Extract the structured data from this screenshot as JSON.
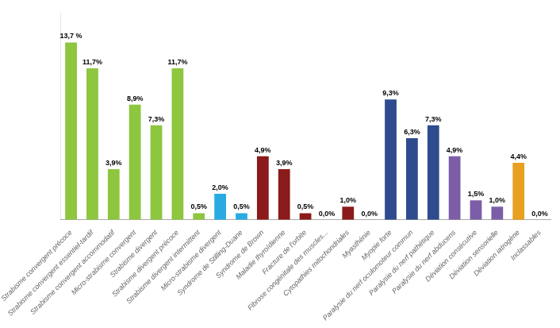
{
  "chart_data": {
    "type": "bar",
    "categories": [
      "Strabisme convergent précoce",
      "Strabisme convergent essentiel-tardif",
      "Strabisme convergent accommodatif",
      "Micro-strabisme convergent",
      "Strabisme divergent",
      "Strabisme divergent précoce",
      "Strabisme divergent intermittent",
      "Micro-strabisme divergent",
      "Syndrome de Stilling-Duane",
      "Syndrome de Brown",
      "Maladie thyroïdienne",
      "Fracture de l'orbite",
      "Fibrose congénitale des muscles...",
      "Cytopathies mitochondriales",
      "Myasthénie",
      "Myopie forte",
      "Paralysie du nerf oculomoteur commun",
      "Paralysie du nerf pathétique",
      "Paralysie du nerf abducens",
      "Déviation consécutive",
      "Déviation sensorielle",
      "Déviation iatrogène",
      "Inclassables"
    ],
    "values": [
      13.7,
      11.7,
      3.9,
      8.9,
      7.3,
      11.7,
      0.5,
      2.0,
      0.5,
      4.9,
      3.9,
      0.5,
      0.0,
      1.0,
      0.0,
      9.3,
      6.3,
      7.3,
      4.9,
      1.5,
      1.0,
      4.4,
      0.0
    ],
    "value_labels": [
      "13,7 %",
      "11,7%",
      "3,9%",
      "8,9%",
      "7,3%",
      "11,7%",
      "0,5%",
      "2,0%",
      "0,5%",
      "4,9%",
      "3,9%",
      "0,5%",
      "0,0%",
      "1,0%",
      "0,0%",
      "9,3%",
      "6,3%",
      "7,3%",
      "4,9%",
      "1,5%",
      "1,0%",
      "4,4%",
      "0,0%"
    ],
    "colors": [
      "#8dc63f",
      "#8dc63f",
      "#8dc63f",
      "#8dc63f",
      "#8dc63f",
      "#8dc63f",
      "#8dc63f",
      "#29abe2",
      "#29abe2",
      "#8b1a1a",
      "#8b1a1a",
      "#8b1a1a",
      "#8b1a1a",
      "#8b1a1a",
      "#8b1a1a",
      "#2e4b8e",
      "#2e4b8e",
      "#2e4b8e",
      "#7b5ea7",
      "#7b5ea7",
      "#7b5ea7",
      "#e8a020",
      "#e0e0e0"
    ],
    "ylim": [
      0,
      16
    ],
    "grid": false,
    "data_labels": true,
    "tick_labels": "x"
  }
}
